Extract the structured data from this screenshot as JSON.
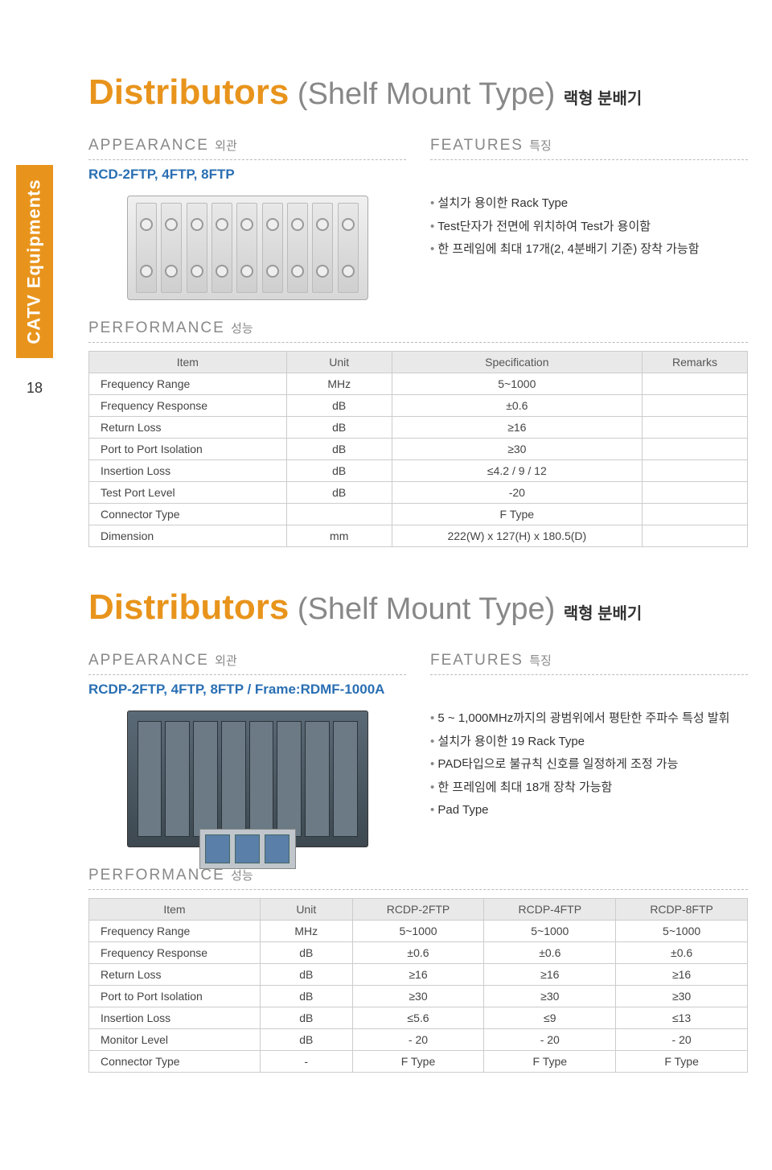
{
  "sidebar": {
    "label": "CATV Equipments",
    "color": "#e8941c"
  },
  "page_number": "18",
  "sections": [
    {
      "title": {
        "t1": "Distributors",
        "t2": " (Shelf Mount Type)",
        "t3": "랙형 분배기"
      },
      "appearance": {
        "heading": "APPEARANCE",
        "heading_sub": "외관",
        "model": "RCD-2FTP, 4FTP, 8FTP"
      },
      "features": {
        "heading": "FEATURES",
        "heading_sub": "특징",
        "items": [
          "설치가 용이한 Rack Type",
          "Test단자가 전면에 위치하여 Test가 용이함",
          "한 프레임에 최대 17개(2, 4분배기 기준) 장착 가능함"
        ]
      },
      "performance": {
        "heading": "PERFORMANCE",
        "heading_sub": "성능",
        "columns": [
          "Item",
          "Unit",
          "Specification",
          "Remarks"
        ],
        "rows": [
          [
            "Frequency Range",
            "MHz",
            "5~1000",
            ""
          ],
          [
            "Frequency Response",
            "dB",
            "±0.6",
            ""
          ],
          [
            "Return Loss",
            "dB",
            "≥16",
            ""
          ],
          [
            "Port to Port Isolation",
            "dB",
            "≥30",
            ""
          ],
          [
            "Insertion Loss",
            "dB",
            "≤4.2 / 9 / 12",
            ""
          ],
          [
            "Test Port Level",
            "dB",
            "-20",
            ""
          ],
          [
            "Connector Type",
            "",
            "F Type",
            ""
          ],
          [
            "Dimension",
            "mm",
            "222(W) x 127(H) x 180.5(D)",
            ""
          ]
        ],
        "col_widths": [
          "30%",
          "16%",
          "38%",
          "16%"
        ]
      }
    },
    {
      "title": {
        "t1": "Distributors",
        "t2": " (Shelf Mount Type)",
        "t3": "랙형 분배기"
      },
      "appearance": {
        "heading": "APPEARANCE",
        "heading_sub": "외관",
        "model": "RCDP-2FTP, 4FTP, 8FTP / Frame:RDMF-1000A"
      },
      "features": {
        "heading": "FEATURES",
        "heading_sub": "특징",
        "items": [
          "5 ~ 1,000MHz까지의 광범위에서 평탄한 주파수 특성 발휘",
          "설치가 용이한 19 Rack Type",
          "PAD타입으로 불규칙 신호를 일정하게 조정 가능",
          "한 프레임에 최대 18개 장착 가능함",
          "Pad Type"
        ]
      },
      "performance": {
        "heading": "PERFORMANCE",
        "heading_sub": "성능",
        "columns": [
          "Item",
          "Unit",
          "RCDP-2FTP",
          "RCDP-4FTP",
          "RCDP-8FTP"
        ],
        "rows": [
          [
            "Frequency Range",
            "MHz",
            "5~1000",
            "5~1000",
            "5~1000"
          ],
          [
            "Frequency Response",
            "dB",
            "±0.6",
            "±0.6",
            "±0.6"
          ],
          [
            "Return Loss",
            "dB",
            "≥16",
            "≥16",
            "≥16"
          ],
          [
            "Port to Port Isolation",
            "dB",
            "≥30",
            "≥30",
            "≥30"
          ],
          [
            "Insertion Loss",
            "dB",
            "≤5.6",
            "≤9",
            "≤13"
          ],
          [
            "Monitor Level",
            "dB",
            "- 20",
            "- 20",
            "- 20"
          ],
          [
            "Connector Type",
            "-",
            "F Type",
            "F Type",
            "F Type"
          ]
        ],
        "col_widths": [
          "26%",
          "14%",
          "20%",
          "20%",
          "20%"
        ]
      }
    }
  ]
}
